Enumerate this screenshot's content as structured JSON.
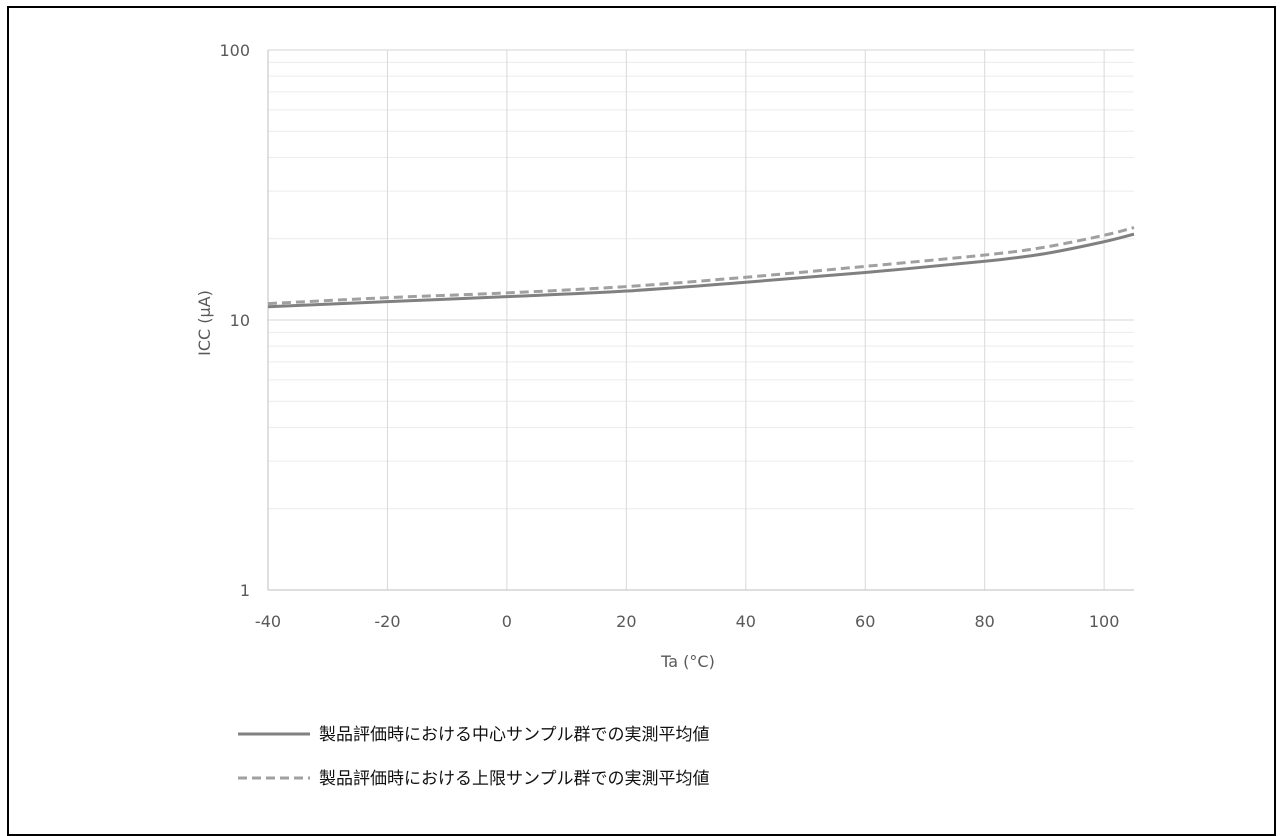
{
  "chart_data": {
    "type": "line",
    "xlabel": "Ta (°C)",
    "ylabel": "ICC (μA)",
    "xlim": [
      -40,
      105
    ],
    "ylim": [
      1,
      100
    ],
    "yscale": "log",
    "x_ticks": [
      -40,
      -20,
      0,
      20,
      40,
      60,
      80,
      100
    ],
    "x_tick_labels": [
      "-40",
      "-20",
      "0",
      "20",
      "40",
      "60",
      "80",
      "100"
    ],
    "y_ticks": [
      1,
      10,
      100
    ],
    "y_tick_labels": [
      "1",
      "10",
      "100"
    ],
    "grid": true,
    "legend_position": "bottom-left",
    "series": [
      {
        "name": "製品評価時における中心サンプル群での実測平均値",
        "style": "solid",
        "color": "#808080",
        "x": [
          -40,
          -20,
          0,
          20,
          40,
          60,
          80,
          90,
          100,
          105
        ],
        "y": [
          11.2,
          11.7,
          12.2,
          12.8,
          13.8,
          15.0,
          16.5,
          17.6,
          19.5,
          20.8
        ]
      },
      {
        "name": "製品評価時における上限サンプル群での実測平均値",
        "style": "dashed",
        "color": "#a0a0a0",
        "x": [
          -40,
          -20,
          0,
          20,
          40,
          60,
          80,
          90,
          100,
          105
        ],
        "y": [
          11.5,
          12.1,
          12.6,
          13.3,
          14.4,
          15.8,
          17.4,
          18.6,
          20.6,
          22.0
        ]
      }
    ]
  }
}
